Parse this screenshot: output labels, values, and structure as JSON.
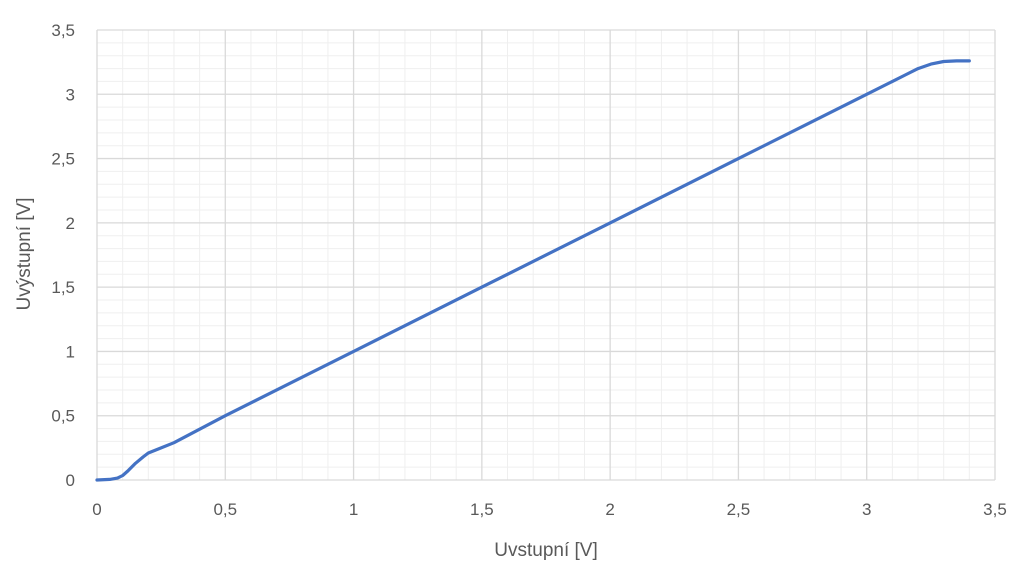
{
  "chart_data": {
    "type": "line",
    "xlabel": "Uvstupní [V]",
    "ylabel": "Uvýstupní [V]",
    "xlim": [
      0,
      3.5
    ],
    "ylim": [
      0,
      3.5
    ],
    "x_ticks": [
      "0",
      "0,5",
      "1",
      "1,5",
      "2",
      "2,5",
      "3",
      "3,5"
    ],
    "y_ticks": [
      "0",
      "0,5",
      "1",
      "1,5",
      "2",
      "2,5",
      "3",
      "3,5"
    ],
    "grid": true,
    "minor_grid": true,
    "legend": "none",
    "line_color": "#4472c4",
    "series": [
      {
        "x": [
          0,
          0.05,
          0.08,
          0.1,
          0.12,
          0.15,
          0.18,
          0.2,
          0.25,
          0.3,
          0.5,
          1.0,
          1.5,
          2.0,
          2.5,
          3.0,
          3.1,
          3.15,
          3.2,
          3.25,
          3.3,
          3.35,
          3.4
        ],
        "y": [
          0,
          0.005,
          0.015,
          0.035,
          0.07,
          0.13,
          0.18,
          0.21,
          0.25,
          0.29,
          0.5,
          1.0,
          1.5,
          2.0,
          2.5,
          3.0,
          3.1,
          3.15,
          3.2,
          3.235,
          3.255,
          3.26,
          3.26
        ]
      }
    ]
  }
}
